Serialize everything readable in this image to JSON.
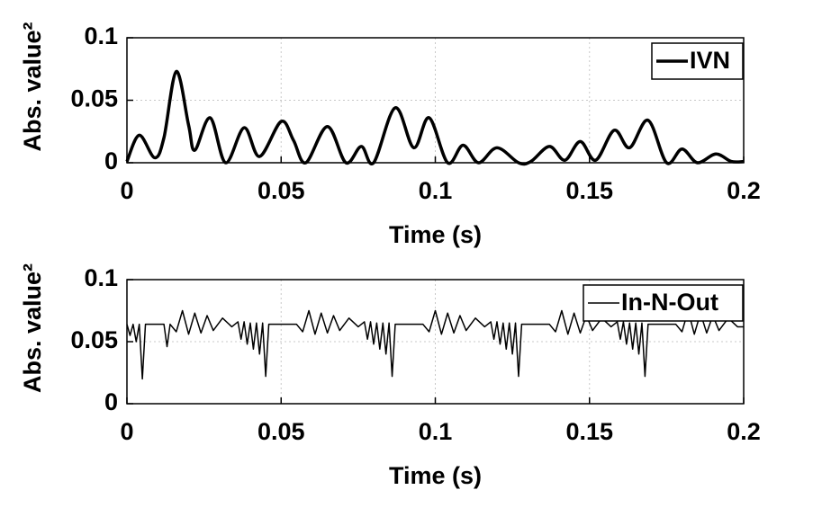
{
  "chart_data": [
    {
      "type": "line",
      "xlabel": "Time (s)",
      "ylabel": "Abs. value²",
      "xlim": [
        0,
        0.2
      ],
      "xticks": [
        0,
        0.05,
        0.1,
        0.15,
        0.2
      ],
      "ylim": [
        0,
        0.1
      ],
      "yticks": [
        0,
        0.05,
        0.1
      ],
      "grid": true,
      "legend": "upper right",
      "series": [
        {
          "name": "IVN",
          "color": "#000000",
          "x": [
            0,
            0.004,
            0.009,
            0.012,
            0.016,
            0.02,
            0.022,
            0.027,
            0.032,
            0.038,
            0.043,
            0.05,
            0.054,
            0.058,
            0.065,
            0.071,
            0.076,
            0.08,
            0.087,
            0.093,
            0.098,
            0.104,
            0.109,
            0.114,
            0.12,
            0.127,
            0.131,
            0.137,
            0.142,
            0.147,
            0.152,
            0.158,
            0.163,
            0.169,
            0.175,
            0.18,
            0.185,
            0.191,
            0.196,
            0.2
          ],
          "values": [
            0.001,
            0.022,
            0.004,
            0.02,
            0.073,
            0.03,
            0.01,
            0.036,
            0.0,
            0.028,
            0.005,
            0.033,
            0.018,
            0.0,
            0.029,
            0.0,
            0.013,
            0.0,
            0.044,
            0.012,
            0.036,
            0.0,
            0.014,
            0.0,
            0.012,
            0.0,
            0.001,
            0.013,
            0.002,
            0.017,
            0.002,
            0.026,
            0.012,
            0.034,
            0.0,
            0.011,
            0.0,
            0.007,
            0.001,
            0.001
          ]
        }
      ]
    },
    {
      "type": "line",
      "xlabel": "Time (s)",
      "ylabel": "Abs. value²",
      "xlim": [
        0,
        0.2
      ],
      "xticks": [
        0,
        0.05,
        0.1,
        0.15,
        0.2
      ],
      "ylim": [
        0,
        0.1
      ],
      "yticks": [
        0,
        0.05,
        0.1
      ],
      "grid": true,
      "legend": "upper right",
      "series": [
        {
          "name": "In-N-Out",
          "color": "#000000",
          "x": [
            0,
            0.001,
            0.002,
            0.003,
            0.004,
            0.005,
            0.006,
            0.012,
            0.013,
            0.014,
            0.016,
            0.018,
            0.02,
            0.022,
            0.024,
            0.026,
            0.028,
            0.031,
            0.034,
            0.036,
            0.037,
            0.038,
            0.039,
            0.04,
            0.041,
            0.042,
            0.043,
            0.044,
            0.045,
            0.046,
            0.055,
            0.057,
            0.059,
            0.061,
            0.063,
            0.065,
            0.067,
            0.069,
            0.072,
            0.075,
            0.077,
            0.078,
            0.079,
            0.08,
            0.081,
            0.082,
            0.083,
            0.084,
            0.085,
            0.086,
            0.087,
            0.096,
            0.098,
            0.1,
            0.102,
            0.104,
            0.106,
            0.108,
            0.11,
            0.113,
            0.116,
            0.118,
            0.119,
            0.12,
            0.121,
            0.122,
            0.123,
            0.124,
            0.125,
            0.126,
            0.127,
            0.128,
            0.137,
            0.139,
            0.141,
            0.143,
            0.145,
            0.147,
            0.149,
            0.151,
            0.154,
            0.157,
            0.159,
            0.16,
            0.161,
            0.162,
            0.163,
            0.164,
            0.165,
            0.166,
            0.167,
            0.168,
            0.169,
            0.178,
            0.18,
            0.182,
            0.184,
            0.186,
            0.188,
            0.19,
            0.192,
            0.195,
            0.198,
            0.2
          ],
          "values": [
            0.064,
            0.055,
            0.064,
            0.05,
            0.064,
            0.02,
            0.064,
            0.064,
            0.046,
            0.064,
            0.058,
            0.075,
            0.056,
            0.073,
            0.057,
            0.071,
            0.059,
            0.069,
            0.062,
            0.066,
            0.052,
            0.066,
            0.048,
            0.065,
            0.044,
            0.065,
            0.04,
            0.065,
            0.022,
            0.064,
            0.064,
            0.058,
            0.075,
            0.056,
            0.073,
            0.057,
            0.071,
            0.059,
            0.069,
            0.062,
            0.066,
            0.052,
            0.066,
            0.048,
            0.065,
            0.044,
            0.065,
            0.04,
            0.065,
            0.022,
            0.064,
            0.064,
            0.058,
            0.075,
            0.056,
            0.073,
            0.057,
            0.071,
            0.059,
            0.069,
            0.062,
            0.066,
            0.052,
            0.066,
            0.048,
            0.065,
            0.044,
            0.065,
            0.04,
            0.065,
            0.022,
            0.064,
            0.064,
            0.058,
            0.075,
            0.056,
            0.073,
            0.057,
            0.071,
            0.059,
            0.069,
            0.062,
            0.066,
            0.052,
            0.066,
            0.048,
            0.065,
            0.044,
            0.065,
            0.04,
            0.065,
            0.022,
            0.064,
            0.064,
            0.058,
            0.075,
            0.056,
            0.073,
            0.057,
            0.071,
            0.059,
            0.069,
            0.062,
            0.062
          ]
        }
      ]
    }
  ]
}
